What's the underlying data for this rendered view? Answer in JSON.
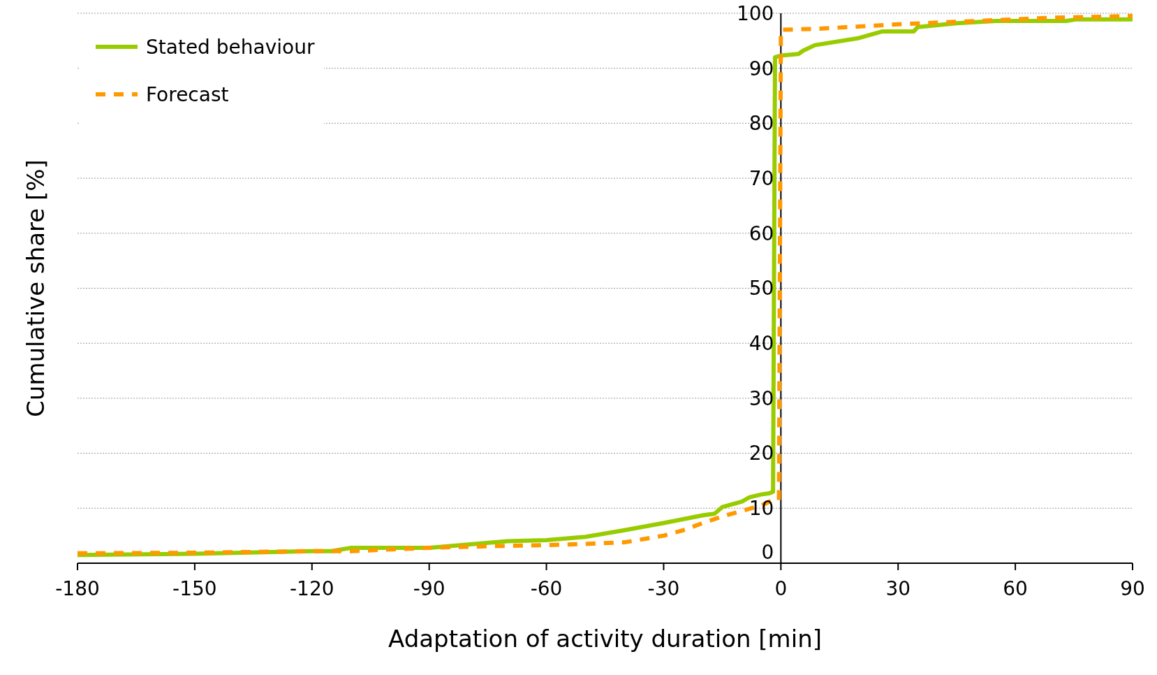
{
  "chart_data": {
    "type": "line",
    "xlabel": "Adaptation of activity duration [min]",
    "ylabel": "Cumulative share [%]",
    "xlim": [
      -180,
      90
    ],
    "xticks": [
      -180,
      -150,
      -120,
      -90,
      -60,
      -30,
      0,
      30,
      60,
      90
    ],
    "ylim": [
      0,
      100
    ],
    "yticks": [
      0,
      10,
      20,
      30,
      40,
      50,
      60,
      70,
      80,
      90,
      100
    ],
    "grid": "y",
    "legend": "top left",
    "marker": "none",
    "series": [
      {
        "name": "Stated behaviour",
        "color": "#99cc00",
        "line_style": "solid",
        "x": [
          -180,
          -150,
          -120,
          -115,
          -110,
          -90,
          -80,
          -70,
          -60,
          -50,
          -40,
          -30,
          -25,
          -20,
          -17,
          -15,
          -10,
          -8,
          -5,
          -3,
          -2,
          -1.5,
          0,
          4.5,
          5.7,
          8.7,
          20,
          26,
          34,
          35,
          45,
          55,
          73,
          75.7,
          90
        ],
        "values": [
          1.5,
          1.7,
          2.2,
          2.2,
          2.8,
          2.8,
          3.4,
          4.0,
          4.2,
          4.8,
          6.0,
          7.3,
          8.0,
          8.7,
          9.0,
          10.2,
          11.2,
          12.0,
          12.5,
          12.7,
          13.0,
          92,
          92.3,
          92.6,
          93.2,
          94.2,
          95.5,
          96.7,
          96.7,
          97.5,
          98.2,
          98.6,
          98.6,
          98.9,
          98.9
        ]
      },
      {
        "name": "Forecast",
        "color": "#ff9900",
        "line_style": "dashed",
        "x": [
          -180,
          -150,
          -120,
          -110,
          -90,
          -80,
          -60,
          -50,
          -40,
          -30,
          -25,
          -20,
          -15,
          -10,
          -5,
          -2,
          -0.5,
          0,
          10,
          30,
          50,
          70,
          90
        ],
        "values": [
          1.8,
          1.9,
          2.2,
          2.2,
          2.8,
          3.0,
          3.3,
          3.5,
          3.8,
          5.0,
          6.0,
          7.3,
          8.5,
          9.5,
          10.5,
          11.5,
          11.5,
          97.0,
          97.2,
          98.0,
          98.6,
          99.2,
          99.5
        ]
      }
    ]
  }
}
